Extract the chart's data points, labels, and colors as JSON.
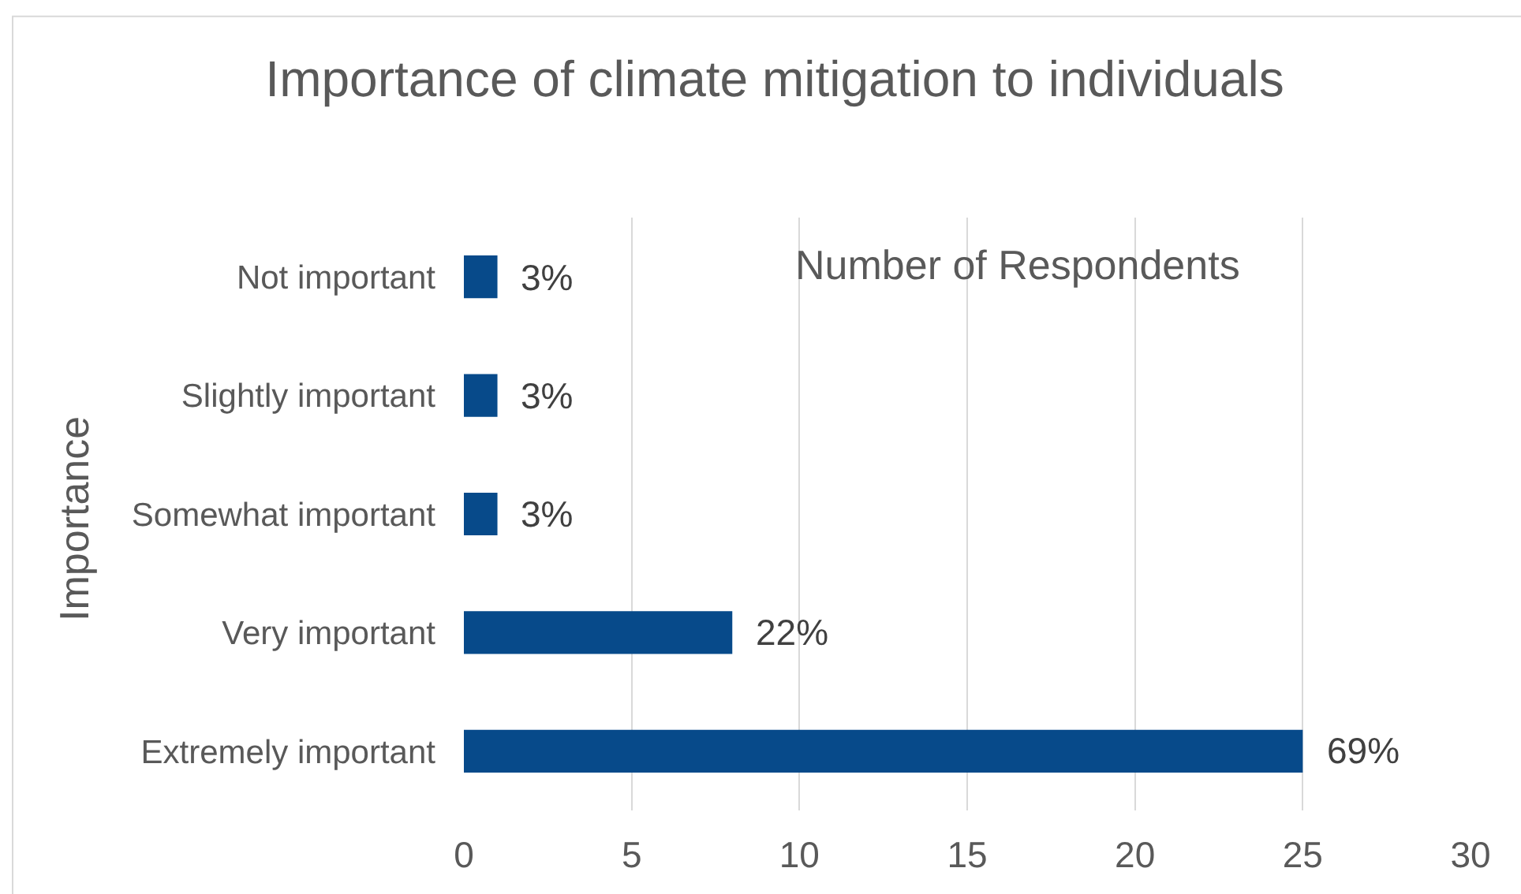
{
  "chart_data": {
    "type": "bar",
    "orientation": "horizontal",
    "title": "Importance of climate mitigation to individuals",
    "xlabel": "Number of Respondents",
    "ylabel": "Importance",
    "categories": [
      "Not important",
      "Slightly important",
      "Somewhat important",
      "Very important",
      "Extremely important"
    ],
    "values": [
      1,
      1,
      1,
      8,
      25
    ],
    "color": "#074a8a",
    "xlim": [
      0,
      30
    ],
    "xticks": [
      0,
      5,
      10,
      15,
      20,
      25,
      30
    ],
    "grid": "x",
    "annotations": [
      {
        "text": "3%",
        "x": 1,
        "y": "Not important"
      },
      {
        "text": "3%",
        "x": 1,
        "y": "Slightly important"
      },
      {
        "text": "3%",
        "x": 1,
        "y": "Somewhat important"
      },
      {
        "text": "22%",
        "x": 8,
        "y": "Very important"
      },
      {
        "text": "69%",
        "x": 25,
        "y": "Extremely important"
      }
    ]
  }
}
